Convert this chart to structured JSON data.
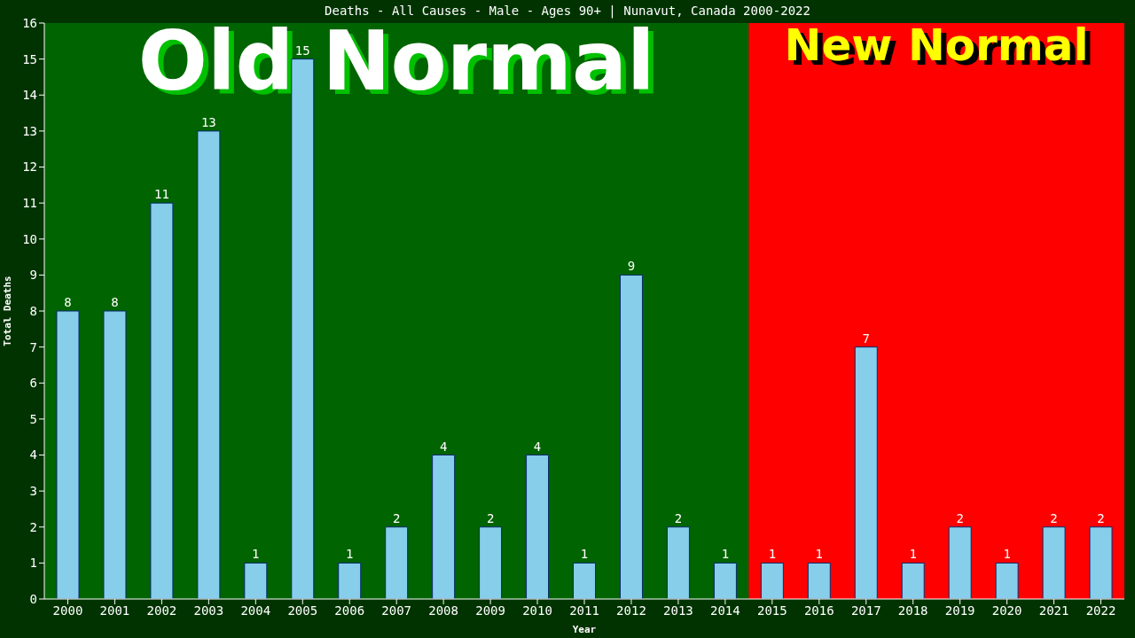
{
  "chart_data": {
    "type": "bar",
    "title": "Deaths - All Causes - Male - Ages 90+ | Nunavut, Canada 2000-2022",
    "xlabel": "Year",
    "ylabel": "Total Deaths",
    "categories": [
      "2000",
      "2001",
      "2002",
      "2003",
      "2004",
      "2005",
      "2006",
      "2007",
      "2008",
      "2009",
      "2010",
      "2011",
      "2012",
      "2013",
      "2014",
      "2015",
      "2016",
      "2017",
      "2018",
      "2019",
      "2020",
      "2021",
      "2022"
    ],
    "values": [
      8,
      8,
      11,
      13,
      1,
      15,
      1,
      2,
      4,
      2,
      4,
      1,
      9,
      2,
      1,
      1,
      1,
      7,
      1,
      2,
      1,
      2,
      2
    ],
    "color": "#87ceeb",
    "ylim": [
      0,
      16
    ],
    "yticks": [
      0,
      1,
      2,
      3,
      4,
      5,
      6,
      7,
      8,
      9,
      10,
      11,
      12,
      13,
      14,
      15,
      16
    ],
    "grid": false,
    "legend": false,
    "data_labels": true,
    "bands": [
      {
        "axis": "x",
        "from": "2000",
        "to": "2014",
        "label": "Old Normal",
        "color": "#006400"
      },
      {
        "axis": "x",
        "from": "2015",
        "to": "2022",
        "label": "New Normal",
        "color": "#ff0000"
      }
    ]
  }
}
